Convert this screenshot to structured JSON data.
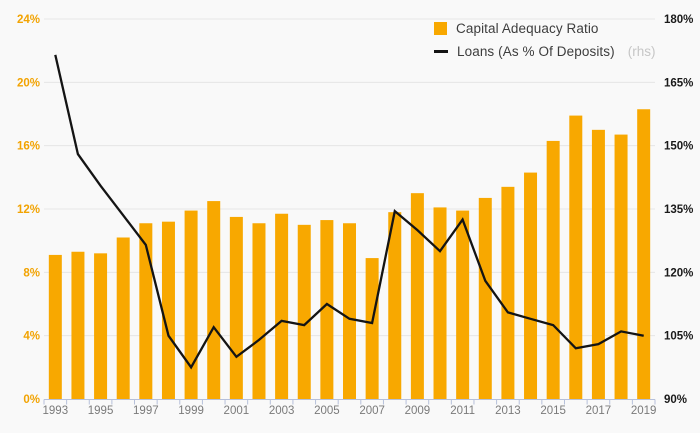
{
  "chart_data": {
    "type": "bar+line",
    "categories": [
      "1993",
      "1994",
      "1995",
      "1996",
      "1997",
      "1998",
      "1999",
      "2000",
      "2001",
      "2002",
      "2003",
      "2004",
      "2005",
      "2006",
      "2007",
      "2008",
      "2009",
      "2010",
      "2011",
      "2012",
      "2013",
      "2014",
      "2015",
      "2016",
      "2017",
      "2018",
      "2019"
    ],
    "series": [
      {
        "name": "Capital Adequacy Ratio",
        "type": "bar",
        "axis": "left",
        "values": [
          9.1,
          9.3,
          9.2,
          10.2,
          11.1,
          11.2,
          11.9,
          12.5,
          11.5,
          11.1,
          11.7,
          11.0,
          11.3,
          11.1,
          8.9,
          11.8,
          13.0,
          12.1,
          11.9,
          12.7,
          13.4,
          14.3,
          16.3,
          17.9,
          17.0,
          16.7,
          18.3
        ]
      },
      {
        "name": "Loans (As % Of Deposits)",
        "type": "line",
        "axis": "right",
        "values": [
          171.5,
          148,
          140.5,
          133.5,
          126.5,
          105,
          97.5,
          107,
          100,
          104,
          108.5,
          107.5,
          112.5,
          109,
          108,
          134.5,
          130,
          125,
          132.5,
          118,
          110.5,
          109,
          107.5,
          102,
          103,
          106,
          105
        ]
      }
    ],
    "left_axis": {
      "min": 0,
      "max": 24,
      "step": 4,
      "tick_labels": [
        "0%",
        "4%",
        "8%",
        "12%",
        "16%",
        "20%",
        "24%"
      ]
    },
    "right_axis": {
      "min": 90,
      "max": 180,
      "step": 15,
      "tick_labels": [
        "90%",
        "105%",
        "120%",
        "135%",
        "150%",
        "165%",
        "180%"
      ]
    },
    "x_axis": {
      "visible_labels": [
        "1993",
        "1995",
        "1997",
        "1999",
        "2001",
        "2003",
        "2005",
        "2007",
        "2009",
        "2011",
        "2013",
        "2015",
        "2017",
        "2019"
      ],
      "label_every": 2
    },
    "grid": true,
    "legend_position": "top-right"
  },
  "legend": {
    "items": [
      {
        "label": "Capital Adequacy Ratio",
        "suffix": ""
      },
      {
        "label": "Loans (As % Of Deposits)",
        "suffix": "(rhs)"
      }
    ]
  },
  "colors": {
    "bar": "#F8A800",
    "line": "#141414",
    "left_axis_label": "#F2A302",
    "right_axis_label": "#1a1a1a",
    "x_label": "#7a7a7a",
    "grid": "#e6e6e6",
    "axis": "#b6c0da",
    "background": "#f9f9f9",
    "legend_text": "#3d3d3d",
    "rhs_text": "#c6c6c6"
  }
}
